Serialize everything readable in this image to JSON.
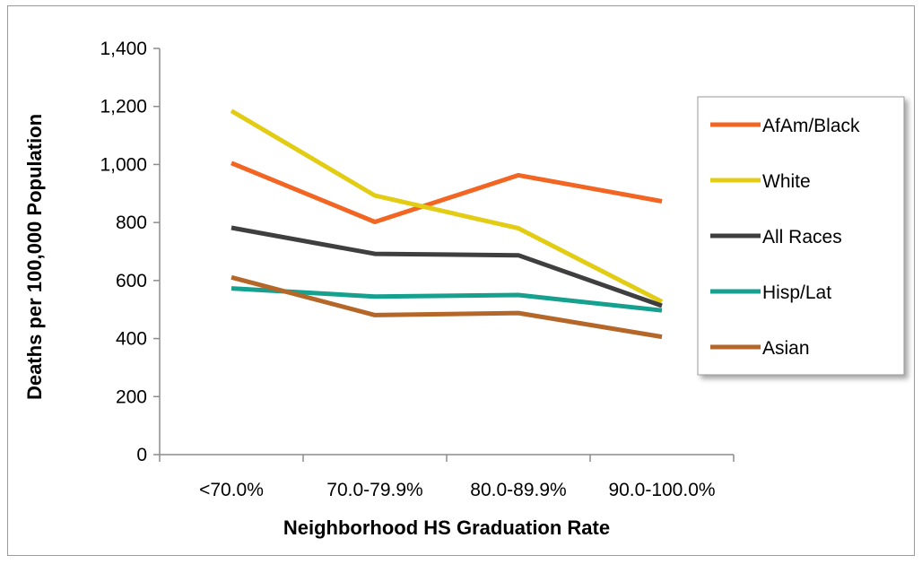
{
  "chart_data": {
    "type": "line",
    "title": "",
    "xlabel": "Neighborhood HS Graduation Rate",
    "ylabel": "Deaths per 100,000 Population",
    "categories": [
      "<70.0%",
      "70.0-79.9%",
      "80.0-89.9%",
      "90.0-100.0%"
    ],
    "ylim": [
      0,
      1400
    ],
    "yticks": [
      0,
      200,
      400,
      600,
      800,
      1000,
      1200,
      1400
    ],
    "ytick_labels": [
      "0",
      "200",
      "400",
      "600",
      "800",
      "1,000",
      "1,200",
      "1,400"
    ],
    "grid": false,
    "legend_position": "right",
    "series": [
      {
        "name": "AfAm/Black",
        "color": "#F26522",
        "values": [
          1005,
          802,
          963,
          873
        ]
      },
      {
        "name": "White",
        "color": "#E3CC14",
        "values": [
          1185,
          893,
          780,
          527
        ]
      },
      {
        "name": "All Races",
        "color": "#3F3F3F",
        "values": [
          782,
          692,
          687,
          513
        ]
      },
      {
        "name": "Hisp/Lat",
        "color": "#16A08E",
        "values": [
          573,
          545,
          550,
          497
        ]
      },
      {
        "name": "Asian",
        "color": "#B5672A",
        "values": [
          611,
          481,
          488,
          406
        ]
      }
    ]
  }
}
